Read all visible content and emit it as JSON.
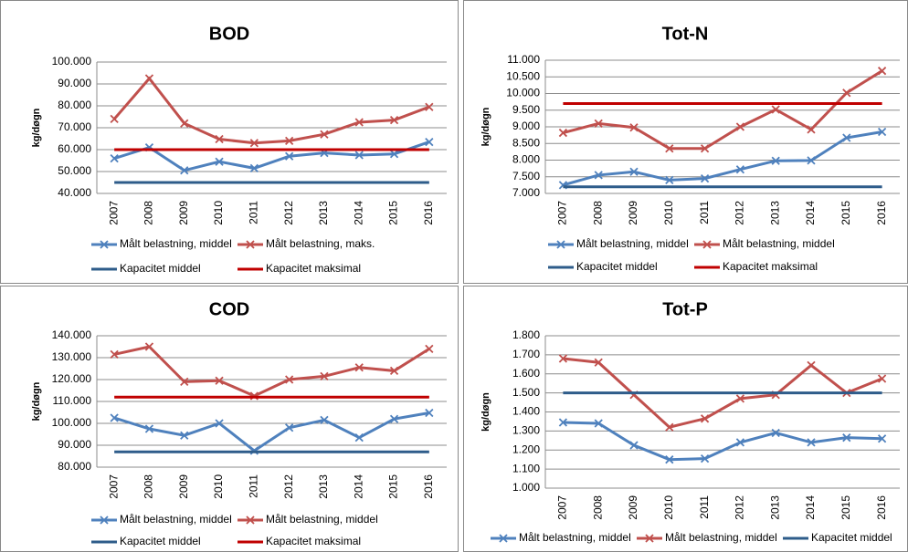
{
  "chart_data": [
    {
      "type": "line",
      "title": "BOD",
      "ylabel": "kg/døgn",
      "grid": true,
      "categories": [
        "2007",
        "2008",
        "2009",
        "2010",
        "2011",
        "2012",
        "2013",
        "2014",
        "2015",
        "2016"
      ],
      "ylim": [
        40000,
        100000
      ],
      "yticks": [
        {
          "value": 40000,
          "label": "40.000"
        },
        {
          "value": 50000,
          "label": "50.000"
        },
        {
          "value": 60000,
          "label": "60.000"
        },
        {
          "value": 70000,
          "label": "70.000"
        },
        {
          "value": 80000,
          "label": "80.000"
        },
        {
          "value": 90000,
          "label": "90.000"
        },
        {
          "value": 100000,
          "label": "100.000"
        }
      ],
      "series": [
        {
          "name": "Målt belastning, middel",
          "color": "#4f81bd",
          "marker": "x",
          "values": [
            56000,
            61000,
            50500,
            54500,
            51500,
            57000,
            58500,
            57500,
            58000,
            63500
          ]
        },
        {
          "name": "Målt belastning, maks.",
          "color": "#c0504d",
          "marker": "x",
          "values": [
            74000,
            92500,
            72000,
            64800,
            63000,
            64000,
            67000,
            72500,
            73500,
            79500
          ]
        },
        {
          "name": "Kapacitet middel",
          "color": "#2e5c8a",
          "values": [
            45000,
            45000,
            45000,
            45000,
            45000,
            45000,
            45000,
            45000,
            45000,
            45000
          ]
        },
        {
          "name": "Kapacitet maksimal",
          "color": "#c00000",
          "values": [
            60000,
            60000,
            60000,
            60000,
            60000,
            60000,
            60000,
            60000,
            60000,
            60000
          ]
        }
      ]
    },
    {
      "type": "line",
      "title": "Tot-N",
      "ylabel": "kg/døgn",
      "grid": true,
      "categories": [
        "2007",
        "2008",
        "2009",
        "2010",
        "2011",
        "2012",
        "2013",
        "2014",
        "2015",
        "2016"
      ],
      "ylim": [
        7000,
        11000
      ],
      "yticks": [
        {
          "value": 7000,
          "label": "7.000"
        },
        {
          "value": 7500,
          "label": "7.500"
        },
        {
          "value": 8000,
          "label": "8.000"
        },
        {
          "value": 8500,
          "label": "8.500"
        },
        {
          "value": 9000,
          "label": "9.000"
        },
        {
          "value": 9500,
          "label": "9.500"
        },
        {
          "value": 10000,
          "label": "10.000"
        },
        {
          "value": 10500,
          "label": "10.500"
        },
        {
          "value": 11000,
          "label": "11.000"
        }
      ],
      "series": [
        {
          "name": "Målt belastning, middel",
          "color": "#4f81bd",
          "marker": "x",
          "values": [
            7250,
            7550,
            7650,
            7400,
            7450,
            7720,
            7980,
            7990,
            8670,
            8850
          ]
        },
        {
          "name": "Målt belastning, middel",
          "color": "#c0504d",
          "marker": "x",
          "values": [
            8820,
            9100,
            8980,
            8350,
            8350,
            9000,
            9520,
            8920,
            10020,
            10680
          ]
        },
        {
          "name": "Kapacitet middel",
          "color": "#2e5c8a",
          "values": [
            7200,
            7200,
            7200,
            7200,
            7200,
            7200,
            7200,
            7200,
            7200,
            7200
          ]
        },
        {
          "name": "Kapacitet maksimal",
          "color": "#c00000",
          "values": [
            9700,
            9700,
            9700,
            9700,
            9700,
            9700,
            9700,
            9700,
            9700,
            9700
          ]
        }
      ]
    },
    {
      "type": "line",
      "title": "COD",
      "ylabel": "kg/døgn",
      "grid": true,
      "categories": [
        "2007",
        "2008",
        "2009",
        "2010",
        "2011",
        "2012",
        "2013",
        "2014",
        "2015",
        "2016"
      ],
      "ylim": [
        80000,
        140000
      ],
      "yticks": [
        {
          "value": 80000,
          "label": "80.000"
        },
        {
          "value": 90000,
          "label": "90.000"
        },
        {
          "value": 100000,
          "label": "100.000"
        },
        {
          "value": 110000,
          "label": "110.000"
        },
        {
          "value": 120000,
          "label": "120.000"
        },
        {
          "value": 130000,
          "label": "130.000"
        },
        {
          "value": 140000,
          "label": "140.000"
        }
      ],
      "series": [
        {
          "name": "Målt belastning, middel",
          "color": "#4f81bd",
          "marker": "x",
          "values": [
            102500,
            97500,
            94500,
            100000,
            87500,
            98000,
            101500,
            93500,
            102000,
            104800
          ]
        },
        {
          "name": "Målt belastning, middel",
          "color": "#c0504d",
          "marker": "x",
          "values": [
            131500,
            135000,
            119000,
            119500,
            112500,
            120000,
            121500,
            125500,
            124000,
            134000
          ]
        },
        {
          "name": "Kapacitet middel",
          "color": "#2e5c8a",
          "values": [
            87000,
            87000,
            87000,
            87000,
            87000,
            87000,
            87000,
            87000,
            87000,
            87000
          ]
        },
        {
          "name": "Kapacitet maksimal",
          "color": "#c00000",
          "values": [
            112000,
            112000,
            112000,
            112000,
            112000,
            112000,
            112000,
            112000,
            112000,
            112000
          ]
        }
      ]
    },
    {
      "type": "line",
      "title": "Tot-P",
      "ylabel": "kg/døgn",
      "grid": true,
      "categories": [
        "2007",
        "2008",
        "2009",
        "2010",
        "2011",
        "2012",
        "2013",
        "2014",
        "2015",
        "2016"
      ],
      "ylim": [
        1000,
        1800
      ],
      "yticks": [
        {
          "value": 1000,
          "label": "1.000"
        },
        {
          "value": 1100,
          "label": "1.100"
        },
        {
          "value": 1200,
          "label": "1.200"
        },
        {
          "value": 1300,
          "label": "1.300"
        },
        {
          "value": 1400,
          "label": "1.400"
        },
        {
          "value": 1500,
          "label": "1.500"
        },
        {
          "value": 1600,
          "label": "1.600"
        },
        {
          "value": 1700,
          "label": "1.700"
        },
        {
          "value": 1800,
          "label": "1.800"
        }
      ],
      "series": [
        {
          "name": "Målt belastning, middel",
          "color": "#4f81bd",
          "marker": "x",
          "values": [
            1345,
            1340,
            1225,
            1150,
            1155,
            1240,
            1290,
            1240,
            1265,
            1260
          ]
        },
        {
          "name": "Målt belastning, middel",
          "color": "#c0504d",
          "marker": "x",
          "values": [
            1680,
            1660,
            1490,
            1320,
            1365,
            1470,
            1490,
            1645,
            1500,
            1575
          ]
        },
        {
          "name": "Kapacitet middel",
          "color": "#2e5c8a",
          "values": [
            1500,
            1500,
            1500,
            1500,
            1500,
            1500,
            1500,
            1500,
            1500,
            1500
          ]
        }
      ]
    }
  ]
}
